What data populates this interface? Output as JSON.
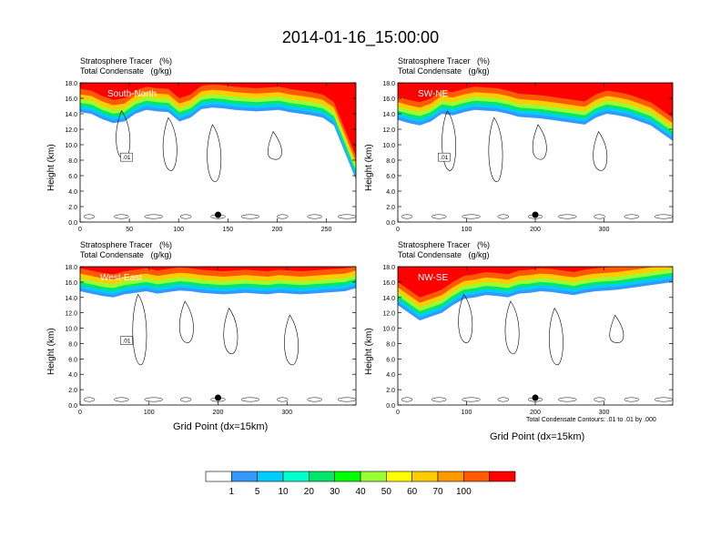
{
  "figure": {
    "title": "2014-01-16_15:00:00",
    "header_left": "Stratosphere Tracer   (%)",
    "header_sub": "Total Condensate   (g/kg)",
    "ylabel": "Height (km)",
    "xlabel": "Grid Point (dx=15km)",
    "contour_note": "Total Condensate Contours: .01 to .01 by .000"
  },
  "chart_data": [
    {
      "type": "heatmap",
      "panel": "South-North",
      "title": "Stratosphere Tracer (%) / Total Condensate (g/kg)",
      "xlim": [
        0,
        280
      ],
      "xticks": [
        "0",
        "50",
        "100",
        "150",
        "200",
        "250"
      ],
      "ylim": [
        0,
        18
      ],
      "yticks": [
        "0.0",
        "2.0",
        "4.0",
        "6.0",
        "8.0",
        "10.0",
        "12.0",
        "14.0",
        "16.0",
        "18.0"
      ],
      "marker_x": 140,
      "tracer_boundary_km": [
        14.2,
        14.0,
        13.3,
        12.8,
        13.0,
        14.0,
        14.5,
        14.3,
        14.2,
        13.0,
        13.5,
        14.6,
        14.8,
        14.7,
        14.5,
        14.4,
        14.3,
        14.4,
        14.5,
        14.2,
        14.0,
        13.8,
        13.5,
        12.5,
        9.0,
        5.5
      ],
      "contour_label": ".01"
    },
    {
      "type": "heatmap",
      "panel": "SW-NE",
      "title": "Stratosphere Tracer (%) / Total Condensate (g/kg)",
      "xlim": [
        0,
        400
      ],
      "xticks": [
        "0",
        "100",
        "200",
        "300"
      ],
      "ylim": [
        0,
        18
      ],
      "yticks": [
        "0.0",
        "2.0",
        "4.0",
        "6.0",
        "8.0",
        "10.0",
        "12.0",
        "14.0",
        "16.0",
        "18.0"
      ],
      "marker_x": 200,
      "tracer_boundary_km": [
        13.2,
        12.8,
        12.5,
        13.0,
        14.0,
        13.8,
        14.2,
        14.5,
        14.4,
        14.3,
        14.0,
        13.6,
        13.5,
        13.4,
        13.2,
        13.0,
        12.8,
        12.6,
        13.5,
        14.0,
        13.8,
        13.5,
        13.0,
        12.5,
        11.5,
        10.5
      ],
      "contour_label": ".01"
    },
    {
      "type": "heatmap",
      "panel": "West-East",
      "title": "Stratosphere Tracer (%) / Total Condensate (g/kg)",
      "xlim": [
        0,
        400
      ],
      "xticks": [
        "0",
        "100",
        "200",
        "300"
      ],
      "ylim": [
        0,
        18
      ],
      "yticks": [
        "0.0",
        "2.0",
        "4.0",
        "6.0",
        "8.0",
        "10.0",
        "12.0",
        "14.0",
        "16.0",
        "18.0"
      ],
      "marker_x": 200,
      "tracer_boundary_km": [
        14.8,
        14.5,
        14.2,
        14.0,
        14.4,
        14.6,
        14.8,
        14.5,
        14.7,
        14.9,
        14.8,
        14.6,
        14.5,
        14.4,
        14.5,
        14.6,
        14.5,
        14.4,
        14.6,
        14.5,
        14.4,
        14.5,
        14.6,
        14.7,
        14.8,
        15.2
      ],
      "contour_label": ".01"
    },
    {
      "type": "heatmap",
      "panel": "NW-SE",
      "title": "Stratosphere Tracer (%) / Total Condensate (g/kg)",
      "xlim": [
        0,
        400
      ],
      "xticks": [
        "0",
        "100",
        "200",
        "300"
      ],
      "ylim": [
        0,
        18
      ],
      "yticks": [
        "0.0",
        "2.0",
        "4.0",
        "6.0",
        "8.0",
        "10.0",
        "12.0",
        "14.0",
        "16.0",
        "18.0"
      ],
      "marker_x": 200,
      "tracer_boundary_km": [
        13.0,
        12.0,
        11.0,
        11.5,
        12.0,
        13.0,
        13.8,
        14.0,
        14.3,
        14.2,
        14.0,
        14.5,
        14.6,
        14.8,
        14.7,
        14.5,
        14.3,
        14.6,
        14.8,
        14.9,
        15.0,
        15.2,
        15.4,
        15.6,
        15.8,
        16.0
      ],
      "contour_label": ""
    }
  ],
  "colorbar": {
    "labels": [
      "1",
      "5",
      "10",
      "20",
      "30",
      "40",
      "50",
      "60",
      "70",
      "100"
    ],
    "colors": [
      "#ffffff",
      "#3399ff",
      "#00ccff",
      "#00ffcc",
      "#00e66b",
      "#00ff00",
      "#99ff33",
      "#ffff00",
      "#ffcc00",
      "#ff9900",
      "#ff5a00",
      "#ff0000"
    ]
  }
}
